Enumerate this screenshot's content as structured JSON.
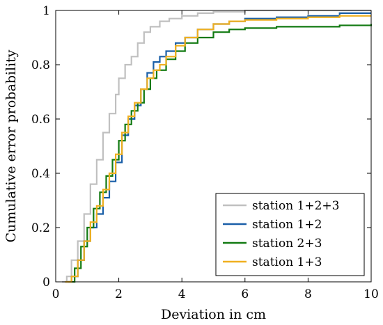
{
  "chart_data": {
    "type": "line",
    "title": "",
    "xlabel": "Deviation in cm",
    "ylabel": "Cumulative error probability",
    "xlim": [
      0,
      10
    ],
    "ylim": [
      0,
      1
    ],
    "xticks": [
      0,
      2,
      4,
      6,
      8,
      10
    ],
    "xtick_labels": [
      "0",
      "2",
      "4",
      "6",
      "8",
      "10"
    ],
    "yticks": [
      0,
      0.2,
      0.4,
      0.6,
      0.8,
      1
    ],
    "ytick_labels": [
      "0",
      "0.2",
      "0.4",
      "0.6",
      "0.8",
      "1"
    ],
    "grid": false,
    "legend_position": "bottom-right",
    "step": true,
    "series": [
      {
        "name": "station 1+2+3",
        "color": "#c0c0c0",
        "x": [
          0.2,
          0.35,
          0.5,
          0.7,
          0.9,
          1.1,
          1.3,
          1.5,
          1.7,
          1.9,
          2.0,
          2.2,
          2.4,
          2.6,
          2.8,
          3.0,
          3.3,
          3.6,
          4.0,
          4.5,
          5.0,
          6.0,
          8.0,
          10.0
        ],
        "y": [
          0.0,
          0.02,
          0.08,
          0.15,
          0.25,
          0.36,
          0.45,
          0.55,
          0.62,
          0.69,
          0.75,
          0.8,
          0.83,
          0.88,
          0.92,
          0.94,
          0.96,
          0.97,
          0.98,
          0.99,
          0.995,
          1.0,
          1.0,
          1.0
        ]
      },
      {
        "name": "station 1+2",
        "color": "#1a5fa8",
        "x": [
          0.3,
          0.5,
          0.7,
          0.9,
          1.1,
          1.3,
          1.5,
          1.7,
          1.9,
          2.1,
          2.3,
          2.5,
          2.7,
          2.9,
          3.1,
          3.3,
          3.5,
          3.8,
          4.1,
          4.5,
          5.0,
          5.5,
          6.0,
          7.0,
          8.0,
          9.0,
          10.0
        ],
        "y": [
          0.0,
          0.02,
          0.08,
          0.15,
          0.2,
          0.25,
          0.31,
          0.37,
          0.44,
          0.54,
          0.6,
          0.65,
          0.71,
          0.77,
          0.81,
          0.83,
          0.85,
          0.88,
          0.9,
          0.93,
          0.95,
          0.96,
          0.97,
          0.975,
          0.98,
          0.99,
          0.99
        ]
      },
      {
        "name": "station 2+3",
        "color": "#127a12",
        "x": [
          0.4,
          0.6,
          0.8,
          1.0,
          1.2,
          1.4,
          1.6,
          1.8,
          2.0,
          2.2,
          2.4,
          2.6,
          2.8,
          3.0,
          3.2,
          3.5,
          3.8,
          4.1,
          4.5,
          5.0,
          5.5,
          6.0,
          7.0,
          8.0,
          9.0,
          10.0
        ],
        "y": [
          0.0,
          0.05,
          0.13,
          0.2,
          0.27,
          0.33,
          0.39,
          0.45,
          0.52,
          0.58,
          0.63,
          0.66,
          0.71,
          0.75,
          0.78,
          0.82,
          0.85,
          0.88,
          0.9,
          0.92,
          0.93,
          0.935,
          0.94,
          0.94,
          0.945,
          0.95
        ]
      },
      {
        "name": "station 1+3",
        "color": "#f0b020",
        "x": [
          0.3,
          0.5,
          0.7,
          0.9,
          1.1,
          1.3,
          1.5,
          1.7,
          1.9,
          2.1,
          2.3,
          2.5,
          2.7,
          2.9,
          3.1,
          3.3,
          3.5,
          3.8,
          4.1,
          4.5,
          5.0,
          5.5,
          6.0,
          7.0,
          8.0,
          9.0,
          10.0
        ],
        "y": [
          0.0,
          0.02,
          0.08,
          0.15,
          0.22,
          0.28,
          0.34,
          0.4,
          0.47,
          0.55,
          0.61,
          0.66,
          0.71,
          0.75,
          0.78,
          0.8,
          0.83,
          0.87,
          0.9,
          0.93,
          0.95,
          0.96,
          0.965,
          0.97,
          0.975,
          0.98,
          0.98
        ]
      }
    ]
  }
}
